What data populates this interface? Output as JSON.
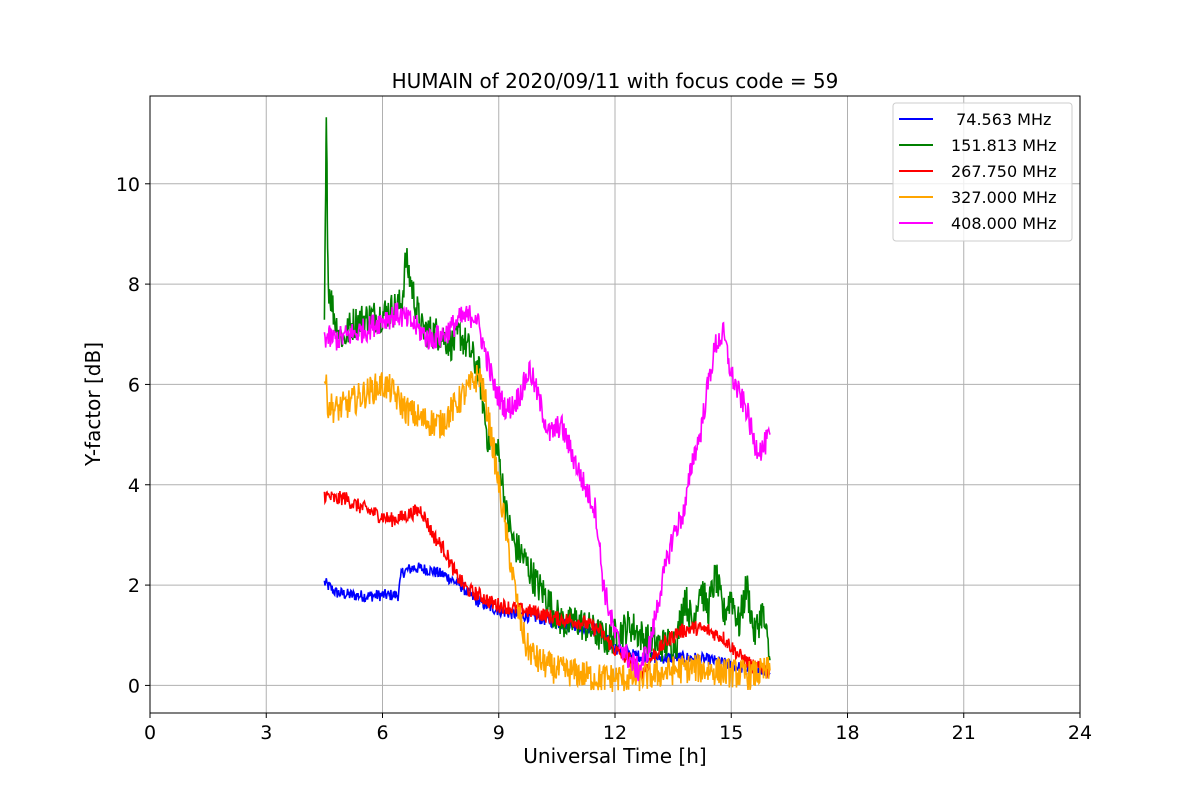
{
  "chart_data": {
    "type": "line",
    "title": "HUMAIN of 2020/09/11 with focus code = 59",
    "xlabel": "Universal Time [h]",
    "ylabel": "Y-factor [dB]",
    "xlim": [
      0,
      24
    ],
    "ylim": [
      -0.55,
      11.75
    ],
    "xticks": [
      0,
      3,
      6,
      9,
      12,
      15,
      18,
      21,
      24
    ],
    "yticks": [
      0,
      2,
      4,
      6,
      8,
      10
    ],
    "grid": true,
    "legend_position": "top-right",
    "series": [
      {
        "name": " 74.563 MHz",
        "color": "#0000ff",
        "x": [
          4.5,
          4.8,
          5.2,
          5.6,
          6.0,
          6.4,
          6.5,
          6.8,
          7.2,
          7.6,
          8.0,
          8.4,
          8.8,
          9.2,
          9.6,
          10.0,
          10.5,
          11.0,
          11.5,
          12.0,
          12.5,
          13.0,
          13.5,
          14.0,
          14.5,
          15.0,
          15.5,
          16.0
        ],
        "y": [
          2.05,
          1.85,
          1.8,
          1.78,
          1.8,
          1.8,
          2.25,
          2.35,
          2.3,
          2.2,
          2.0,
          1.7,
          1.55,
          1.45,
          1.4,
          1.35,
          1.25,
          1.2,
          1.1,
          0.75,
          0.6,
          0.55,
          0.55,
          0.55,
          0.5,
          0.4,
          0.3,
          0.25
        ]
      },
      {
        "name": "151.813 MHz",
        "color": "#008000",
        "x": [
          4.5,
          4.55,
          4.6,
          4.8,
          5.0,
          5.2,
          5.5,
          6.0,
          6.5,
          6.6,
          7.0,
          7.5,
          7.8,
          8.0,
          8.3,
          8.5,
          8.7,
          9.0,
          9.2,
          9.4,
          9.6,
          9.8,
          10.0,
          10.2,
          10.4,
          10.6,
          10.8,
          11.0,
          11.2,
          11.4,
          11.6,
          11.8,
          12.0,
          12.4,
          12.8,
          13.2,
          13.6,
          13.8,
          14.0,
          14.2,
          14.4,
          14.6,
          14.8,
          15.0,
          15.2,
          15.4,
          15.6,
          15.8,
          16.0
        ],
        "y": [
          7.0,
          11.2,
          8.0,
          7.2,
          6.9,
          7.2,
          7.3,
          7.4,
          7.6,
          8.5,
          7.1,
          7.0,
          6.8,
          7.0,
          6.6,
          6.2,
          5.0,
          4.6,
          3.4,
          2.8,
          2.6,
          2.3,
          2.0,
          1.8,
          1.5,
          1.3,
          1.2,
          1.3,
          1.2,
          1.1,
          1.0,
          0.9,
          1.0,
          1.2,
          0.9,
          0.8,
          0.9,
          1.8,
          1.2,
          2.0,
          1.5,
          2.2,
          1.4,
          1.8,
          1.2,
          2.0,
          1.0,
          1.5,
          0.5
        ]
      },
      {
        "name": "267.750 MHz",
        "color": "#ff0000",
        "x": [
          4.5,
          4.8,
          5.0,
          5.3,
          5.6,
          5.9,
          6.2,
          6.5,
          6.8,
          7.0,
          7.3,
          7.6,
          7.9,
          8.2,
          8.5,
          8.8,
          9.0,
          9.3,
          9.6,
          10.0,
          10.4,
          10.8,
          11.2,
          11.6,
          12.0,
          12.4,
          12.7,
          13.0,
          13.3,
          13.6,
          14.0,
          14.4,
          14.8,
          15.2,
          15.6,
          16.0
        ],
        "y": [
          3.8,
          3.7,
          3.75,
          3.6,
          3.5,
          3.4,
          3.3,
          3.35,
          3.45,
          3.5,
          3.0,
          2.7,
          2.2,
          1.9,
          1.8,
          1.65,
          1.6,
          1.55,
          1.5,
          1.45,
          1.35,
          1.3,
          1.25,
          1.1,
          0.7,
          0.5,
          0.25,
          0.6,
          0.85,
          1.05,
          1.15,
          1.1,
          0.95,
          0.6,
          0.35,
          0.3
        ]
      },
      {
        "name": "327.000 MHz",
        "color": "#ffa500",
        "x": [
          4.5,
          4.6,
          4.8,
          5.1,
          5.5,
          6.0,
          6.2,
          6.6,
          7.0,
          7.5,
          7.9,
          8.2,
          8.5,
          8.7,
          8.9,
          9.1,
          9.3,
          9.5,
          9.7,
          10.0,
          10.5,
          11.0,
          11.5,
          12.0,
          12.5,
          13.0,
          13.5,
          14.0,
          14.5,
          15.0,
          15.5,
          16.0
        ],
        "y": [
          6.2,
          5.6,
          5.5,
          5.6,
          5.8,
          6.0,
          5.9,
          5.5,
          5.3,
          5.2,
          5.6,
          5.9,
          6.2,
          5.5,
          4.5,
          3.5,
          2.5,
          1.5,
          0.8,
          0.5,
          0.3,
          0.25,
          0.15,
          0.15,
          0.15,
          0.2,
          0.3,
          0.35,
          0.3,
          0.25,
          0.2,
          0.3
        ]
      },
      {
        "name": "408.000 MHz",
        "color": "#ff00ff",
        "x": [
          4.5,
          4.8,
          5.2,
          5.6,
          6.0,
          6.4,
          6.8,
          7.2,
          7.6,
          8.0,
          8.4,
          8.7,
          8.9,
          9.2,
          9.4,
          9.6,
          9.8,
          10.0,
          10.3,
          10.6,
          10.9,
          11.2,
          11.5,
          11.7,
          12.0,
          12.3,
          12.6,
          12.9,
          13.2,
          13.5,
          13.8,
          14.0,
          14.2,
          14.4,
          14.6,
          14.8,
          15.0,
          15.2,
          15.4,
          15.6,
          15.8,
          16.0
        ],
        "y": [
          6.95,
          6.9,
          7.0,
          7.1,
          7.3,
          7.4,
          7.2,
          6.9,
          7.0,
          7.3,
          7.4,
          6.5,
          5.9,
          5.5,
          5.6,
          5.9,
          6.3,
          5.8,
          5.0,
          5.2,
          4.6,
          4.0,
          3.5,
          2.0,
          1.0,
          0.6,
          0.3,
          0.8,
          2.0,
          3.0,
          3.5,
          4.5,
          5.0,
          6.0,
          6.8,
          7.0,
          6.2,
          5.8,
          5.5,
          4.8,
          4.7,
          5.0
        ]
      }
    ]
  }
}
